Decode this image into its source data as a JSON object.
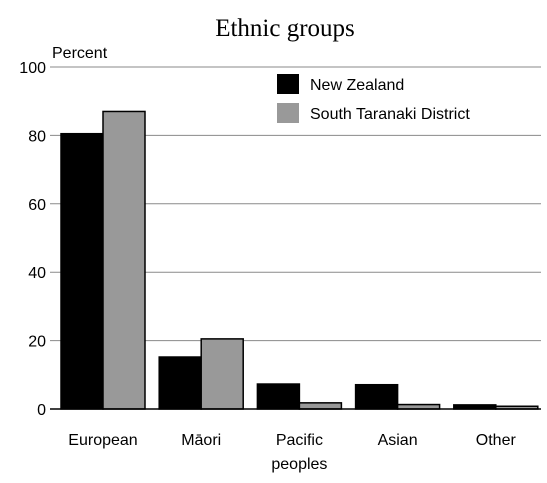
{
  "chart_data": {
    "type": "bar",
    "title": "Ethnic groups",
    "ylabel": "Percent",
    "xlabel": "",
    "ylim": [
      0,
      100
    ],
    "yticks": [
      0,
      20,
      40,
      60,
      80,
      100
    ],
    "grid": true,
    "legend_position": "top-right",
    "categories": [
      [
        "European"
      ],
      [
        "Māori"
      ],
      [
        "Pacific",
        "peoples"
      ],
      [
        "Asian"
      ],
      [
        "Other"
      ]
    ],
    "series": [
      {
        "name": "New Zealand",
        "color": "#000000",
        "values": [
          80.5,
          15.2,
          7.3,
          7.1,
          1.2
        ]
      },
      {
        "name": "South Taranaki District",
        "color": "#999999",
        "values": [
          87.0,
          20.5,
          1.8,
          1.3,
          0.8
        ]
      }
    ]
  }
}
